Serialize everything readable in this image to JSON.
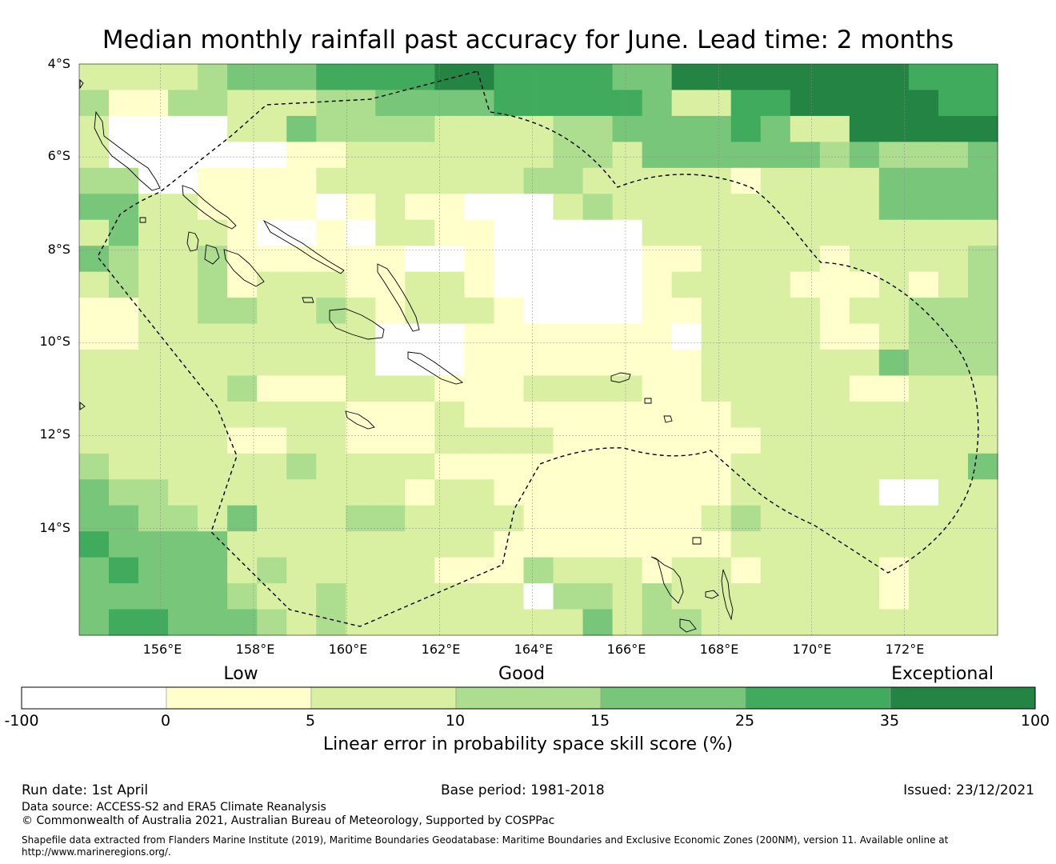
{
  "title": "Median monthly rainfall past accuracy for June. Lead time: 2 months",
  "map": {
    "lat_labels": [
      "4°S",
      "6°S",
      "8°S",
      "10°S",
      "12°S",
      "14°S"
    ],
    "lon_labels": [
      "156°E",
      "158°E",
      "160°E",
      "162°E",
      "164°E",
      "166°E",
      "168°E",
      "170°E",
      "172°E"
    ],
    "lon_range": [
      154.25,
      174.0
    ],
    "lat_range": [
      -4.0,
      -16.3
    ],
    "grid_resolution_deg": 0.83,
    "category_colors": [
      "#ffffff",
      "#ffffcc",
      "#d9f0a3",
      "#addd8e",
      "#78c679",
      "#41ab5d",
      "#238443"
    ]
  },
  "chart_data": {
    "type": "heatmap",
    "title": "Median monthly rainfall past accuracy for June. Lead time: 2 months",
    "value_description": "Category index 0-6 per grid cell (0:-100..0, 1:0..5, 2:5..10, 3:10..15, 4:15..25, 5:25..35, 6:35..100)",
    "rows": [
      "2222344455556655554466666666555",
      "3113322233444455555422556666655",
      "2000022433332222334444542266666",
      "2000000112222222332444444343334",
      "3300111122222223322222122224444",
      "4422111101211000232222222224444",
      "2422210010221100000222222222222",
      "4322311111100100000112222122223",
      "2322312221122100000122221112123",
      "1122332232122210000112222122333",
      "1122222222000111111102222112333",
      "2222222222000111111112222224333",
      "2222231112221112222112222211222",
      "2222222221112111111111222222222",
      "2222211221112222111111122222222",
      "3222222322221111111111222222224",
      "4332222222212211111111222220022",
      "4433242223322221111112322222222",
      "5444422222222211111111222222222",
      "4544423222221113222122122221222",
      "4444432232222220332322222221222",
      "4554443232222222242332222222222"
    ],
    "colorbar": {
      "ticks": [
        "-100",
        "0",
        "5",
        "10",
        "15",
        "25",
        "35",
        "100"
      ],
      "categories": [
        "Low",
        "Good",
        "Exceptional"
      ],
      "label": "Linear error in probability space skill score (%)"
    }
  },
  "footer": {
    "run_date": "Run date: 1st April",
    "base_period": "Base period: 1981-2018",
    "issued": "Issued: 23/12/2021",
    "data_source": "Data source: ACCESS-S2 and ERA5 Climate Reanalysis",
    "copyright": "© Commonwealth of Australia 2021, Australian Bureau of Meteorology, Supported by COSPPac",
    "shapefile_line1": "Shapefile data extracted from Flanders Marine Institute (2019), Maritime Boundaries Geodatabase: Maritime Boundaries and Exclusive Economic Zones (200NM), version 11. Available online at",
    "shapefile_line2": "http://www.marineregions.org/."
  }
}
